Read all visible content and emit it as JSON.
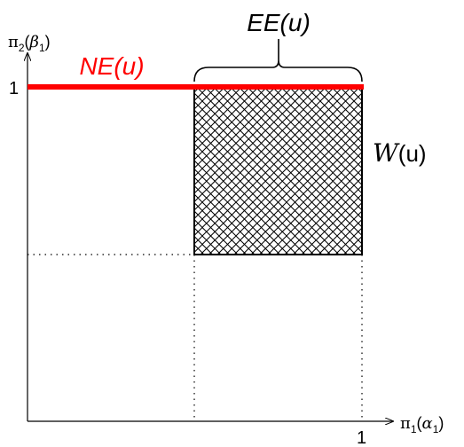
{
  "axes": {
    "y_label_main": "π",
    "y_label_sub": "2",
    "y_label_arg_open": "(",
    "y_label_arg": "β",
    "y_label_arg_sub": "1",
    "y_label_arg_close": ")",
    "x_label_main": "π",
    "x_label_sub": "1",
    "x_label_arg_open": "(",
    "x_label_arg": "α",
    "x_label_arg_sub": "1",
    "x_label_arg_close": ")",
    "y_tick": "1",
    "x_tick": "1"
  },
  "labels": {
    "ne": "NE(u)",
    "ee": "EE(u)",
    "w_script": "W",
    "w_arg": "(u)"
  },
  "colors": {
    "ne_line": "#ff0000",
    "ne_text": "#ff0000",
    "ink": "#000000"
  }
}
